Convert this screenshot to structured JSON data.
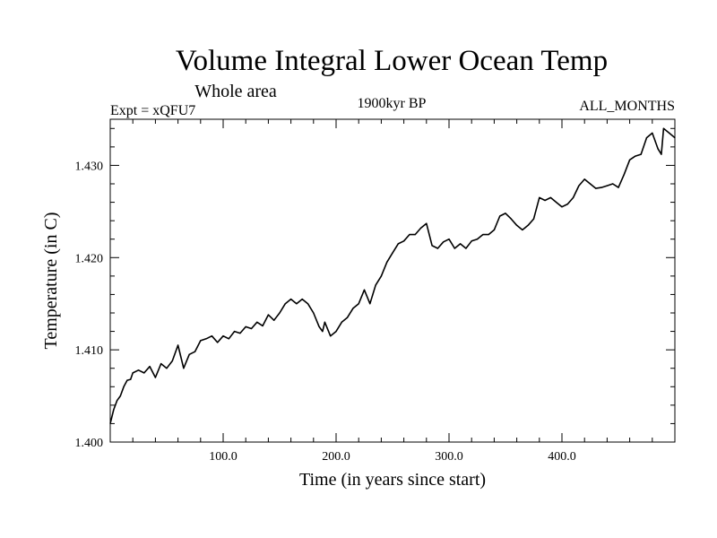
{
  "chart_data": {
    "type": "line",
    "title": "Volume Integral Lower Ocean Temp",
    "subtitle": "Whole area",
    "info_left": "Expt = xQFU7",
    "info_center": "1900kyr BP",
    "info_right": "ALL_MONTHS",
    "xlabel": "Time (in years since start)",
    "ylabel": "Temperature (in C)",
    "xlim": [
      0,
      500
    ],
    "ylim": [
      1.4,
      1.435
    ],
    "xticks": [
      {
        "value": 100,
        "label": "100.0"
      },
      {
        "value": 200,
        "label": "200.0"
      },
      {
        "value": 300,
        "label": "300.0"
      },
      {
        "value": 400,
        "label": "400.0"
      }
    ],
    "yticks": [
      {
        "value": 1.4,
        "label": "1.400"
      },
      {
        "value": 1.41,
        "label": "1.410"
      },
      {
        "value": 1.42,
        "label": "1.420"
      },
      {
        "value": 1.43,
        "label": "1.430"
      }
    ],
    "series": [
      {
        "name": "Temperature",
        "x": [
          0,
          3,
          6,
          9,
          12,
          15,
          18,
          20,
          25,
          30,
          35,
          40,
          45,
          50,
          55,
          60,
          65,
          70,
          75,
          80,
          85,
          90,
          95,
          100,
          105,
          110,
          115,
          120,
          125,
          130,
          135,
          140,
          145,
          150,
          155,
          160,
          165,
          170,
          175,
          180,
          185,
          188,
          190,
          195,
          200,
          205,
          210,
          215,
          220,
          225,
          230,
          235,
          240,
          245,
          250,
          255,
          260,
          265,
          270,
          275,
          280,
          285,
          290,
          295,
          300,
          305,
          310,
          315,
          320,
          325,
          330,
          335,
          340,
          345,
          350,
          355,
          360,
          365,
          370,
          375,
          380,
          385,
          390,
          395,
          400,
          405,
          410,
          415,
          420,
          425,
          430,
          435,
          440,
          445,
          450,
          455,
          460,
          465,
          470,
          475,
          480,
          485,
          488,
          490,
          495,
          500
        ],
        "values": [
          1.402,
          1.4035,
          1.4045,
          1.405,
          1.406,
          1.4067,
          1.4068,
          1.4075,
          1.4078,
          1.4075,
          1.4082,
          1.407,
          1.4085,
          1.408,
          1.4088,
          1.4105,
          1.408,
          1.4095,
          1.4098,
          1.411,
          1.4112,
          1.4115,
          1.4108,
          1.4115,
          1.4112,
          1.412,
          1.4118,
          1.4125,
          1.4123,
          1.413,
          1.4126,
          1.4138,
          1.4132,
          1.414,
          1.415,
          1.4155,
          1.415,
          1.4155,
          1.415,
          1.414,
          1.4125,
          1.412,
          1.413,
          1.4115,
          1.412,
          1.413,
          1.4135,
          1.4145,
          1.415,
          1.4165,
          1.415,
          1.417,
          1.418,
          1.4195,
          1.4205,
          1.4215,
          1.4218,
          1.4225,
          1.4225,
          1.4232,
          1.4237,
          1.4213,
          1.421,
          1.4217,
          1.422,
          1.421,
          1.4215,
          1.421,
          1.4218,
          1.422,
          1.4225,
          1.4225,
          1.423,
          1.4245,
          1.4248,
          1.4242,
          1.4235,
          1.423,
          1.4235,
          1.4242,
          1.4265,
          1.4262,
          1.4265,
          1.426,
          1.4255,
          1.4258,
          1.4265,
          1.4278,
          1.4285,
          1.428,
          1.4275,
          1.4276,
          1.4278,
          1.428,
          1.4276,
          1.429,
          1.4306,
          1.431,
          1.4312,
          1.433,
          1.4335,
          1.4318,
          1.4312,
          1.434,
          1.4335,
          1.433
        ]
      }
    ],
    "grid": false
  }
}
